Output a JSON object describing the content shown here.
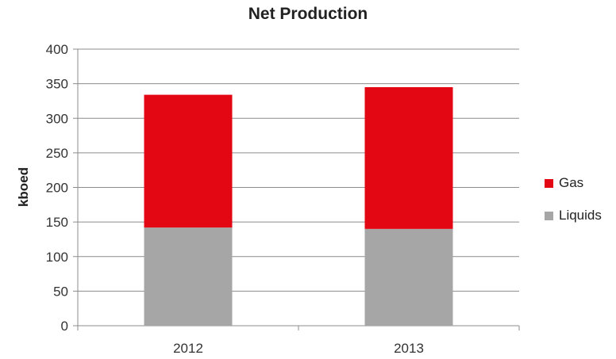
{
  "chart_data": {
    "type": "bar",
    "stacked": true,
    "title": "Net Production",
    "xlabel": "",
    "ylabel": "kboed",
    "categories": [
      "2012",
      "2013"
    ],
    "series": [
      {
        "name": "Liquids",
        "values": [
          142,
          140
        ],
        "color": "#a6a6a6"
      },
      {
        "name": "Gas",
        "values": [
          192,
          205
        ],
        "color": "#e30613"
      }
    ],
    "ylim": [
      0,
      400
    ],
    "yticks": [
      "0",
      "50",
      "100",
      "150",
      "200",
      "250",
      "300",
      "350",
      "400"
    ],
    "grid": true,
    "legend_position": "right"
  }
}
